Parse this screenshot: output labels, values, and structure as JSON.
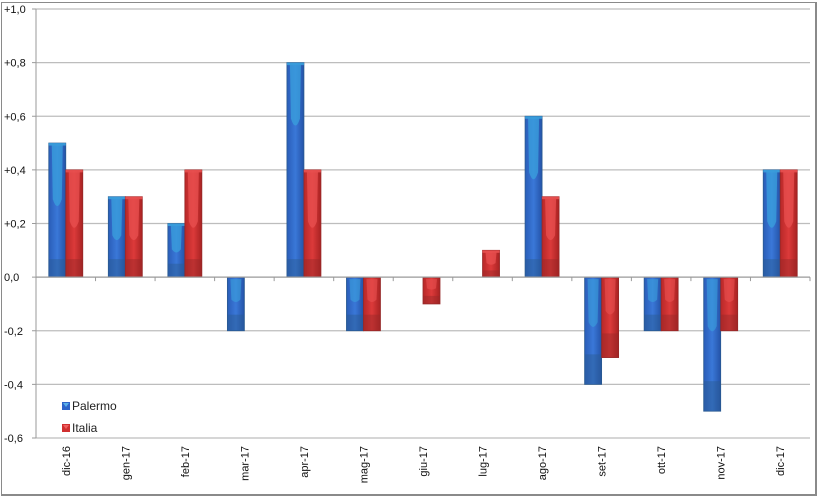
{
  "chart_data": {
    "type": "bar",
    "title": "",
    "xlabel": "",
    "ylabel": "",
    "categories": [
      "dic-16",
      "gen-17",
      "feb-17",
      "mar-17",
      "apr-17",
      "mag-17",
      "giu-17",
      "lug-17",
      "ago-17",
      "set-17",
      "ott-17",
      "nov-17",
      "dic-17"
    ],
    "series": [
      {
        "name": "Palermo",
        "color": "#2e64c8",
        "values": [
          0.5,
          0.3,
          0.2,
          -0.2,
          0.8,
          -0.2,
          0.0,
          0.0,
          0.6,
          -0.4,
          -0.2,
          -0.5,
          0.4
        ]
      },
      {
        "name": "Italia",
        "color": "#d03030",
        "values": [
          0.4,
          0.3,
          0.4,
          0.0,
          0.4,
          -0.2,
          -0.1,
          0.1,
          0.3,
          -0.3,
          -0.2,
          -0.2,
          0.4
        ]
      }
    ],
    "ylim": [
      -0.6,
      1.0
    ],
    "yticks": [
      1.0,
      0.8,
      0.6,
      0.4,
      0.2,
      0.0,
      -0.2,
      -0.4,
      -0.6
    ],
    "ytick_labels": [
      "+1,0",
      "+0,8",
      "+0,6",
      "+0,4",
      "+0,2",
      "0,0",
      "-0,2",
      "-0,4",
      "-0,6"
    ],
    "grid": true,
    "legend_position": "lower-left inside plot"
  },
  "legend": {
    "items": [
      {
        "label": "Palermo",
        "color": "#2e64c8"
      },
      {
        "label": "Italia",
        "color": "#d03030"
      }
    ]
  }
}
